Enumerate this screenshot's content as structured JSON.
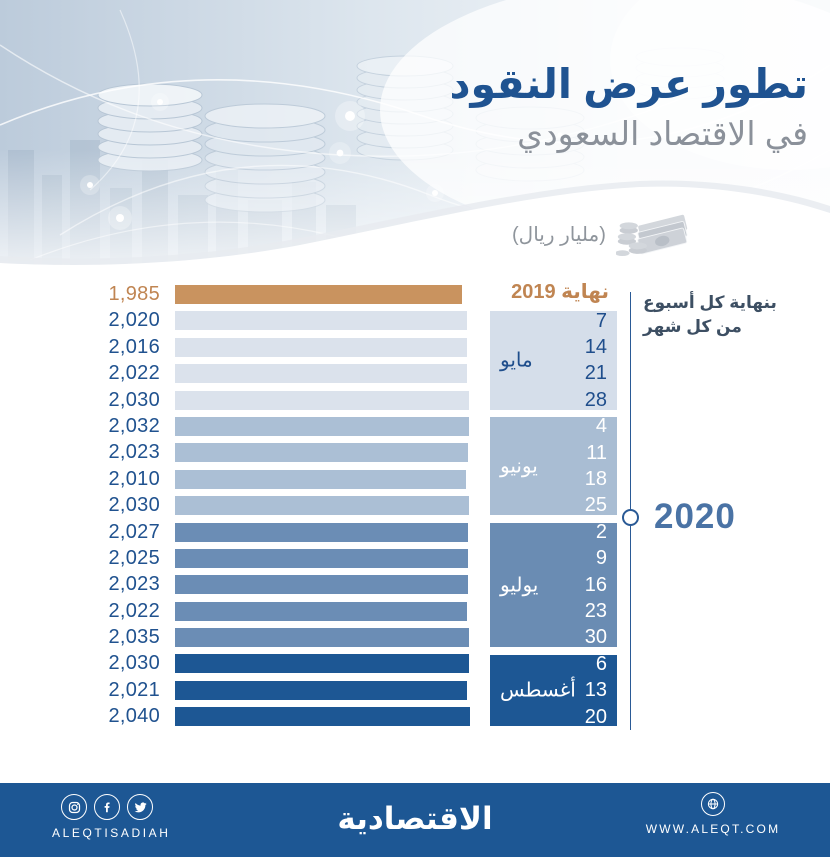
{
  "header": {
    "title_line1": "تطور عرض النقود",
    "title_line2": "في الاقتصاد السعودي",
    "units_label": "(مليار ريال)"
  },
  "annotation": {
    "line1": "بنهاية كل أسبوع",
    "line2": "من كل شهر"
  },
  "year_label": "2020",
  "chart_data": {
    "type": "bar",
    "orientation": "horizontal",
    "title": "تطور عرض النقود في الاقتصاد السعودي",
    "units": "مليار ريال",
    "value_axis_max": 2040,
    "baseline": {
      "label": "نهاية 2019",
      "value": 1985
    },
    "groups": [
      {
        "month": "مايو",
        "days": [
          7,
          14,
          21,
          28
        ],
        "values": [
          2020,
          2016,
          2022,
          2030
        ],
        "bar_color": "#dbe2ec",
        "block_color": "#d5deea",
        "day_color": "#1f4e8c"
      },
      {
        "month": "يونيو",
        "days": [
          4,
          11,
          18,
          25
        ],
        "values": [
          2032,
          2023,
          2010,
          2030
        ],
        "bar_color": "#abbfd5",
        "block_color": "#a9bdd3",
        "day_color": "#ffffff"
      },
      {
        "month": "يوليو",
        "days": [
          2,
          9,
          16,
          23,
          30
        ],
        "values": [
          2027,
          2025,
          2023,
          2022,
          2035
        ],
        "bar_color": "#6b8db5",
        "block_color": "#6a8cb3",
        "day_color": "#ffffff"
      },
      {
        "month": "أغسطس",
        "days": [
          6,
          13,
          20
        ],
        "values": [
          2030,
          2021,
          2040
        ],
        "bar_color": "#1d5794",
        "block_color": "#1d5794",
        "day_color": "#ffffff"
      }
    ]
  },
  "colors": {
    "baseline_bar": "#c9935f",
    "baseline_text": "#c08552",
    "value_text": "#20528f",
    "title_blue": "#1f5391",
    "subtitle_gray": "#8b919a",
    "annotation_text": "#3d4f63",
    "timeline": "#2a5a96",
    "year_text": "#4a73a5",
    "footer_bg": "#1d5794"
  },
  "footer": {
    "brand_latin": "ALEQTISADIAH",
    "logo": "الاقتصادية",
    "website": "WWW.ALEQT.COM",
    "social": [
      "instagram",
      "facebook",
      "twitter"
    ]
  }
}
